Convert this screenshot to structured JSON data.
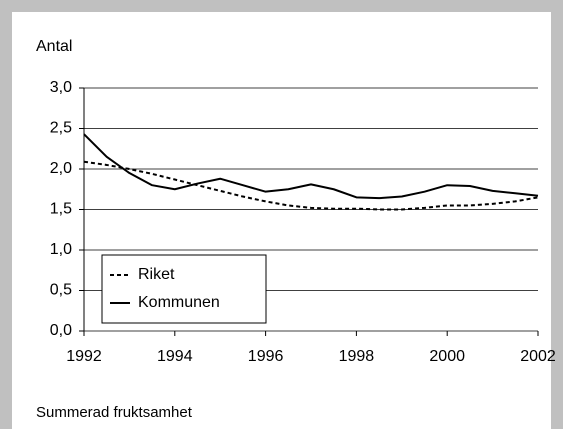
{
  "chart_data": {
    "type": "line",
    "title": "Antal",
    "caption": "Summerad fruktsamhet",
    "x": [
      1992,
      1992.5,
      1993,
      1993.5,
      1994,
      1994.5,
      1995,
      1995.5,
      1996,
      1996.5,
      1997,
      1997.5,
      1998,
      1998.5,
      1999,
      1999.5,
      2000,
      2000.5,
      2001,
      2001.5,
      2002
    ],
    "series": [
      {
        "name": "Riket",
        "color": "#000000",
        "dash": true,
        "values": [
          2.09,
          2.05,
          2.0,
          1.94,
          1.87,
          1.8,
          1.73,
          1.66,
          1.6,
          1.55,
          1.52,
          1.51,
          1.51,
          1.5,
          1.5,
          1.52,
          1.55,
          1.55,
          1.57,
          1.6,
          1.65
        ]
      },
      {
        "name": "Kommunen",
        "color": "#000000",
        "dash": false,
        "values": [
          2.43,
          2.15,
          1.95,
          1.8,
          1.75,
          1.82,
          1.88,
          1.8,
          1.72,
          1.75,
          1.81,
          1.75,
          1.65,
          1.64,
          1.66,
          1.72,
          1.8,
          1.79,
          1.73,
          1.7,
          1.67
        ]
      }
    ],
    "xlim": [
      1992,
      2002
    ],
    "xticks": [
      1992,
      1994,
      1996,
      1998,
      2000,
      2002
    ],
    "ylim": [
      0,
      3
    ],
    "yticks": [
      {
        "value": 0,
        "label": "0,0"
      },
      {
        "value": 0.5,
        "label": "0,5"
      },
      {
        "value": 1,
        "label": "1,0"
      },
      {
        "value": 1.5,
        "label": "1,5"
      },
      {
        "value": 2,
        "label": "2,0"
      },
      {
        "value": 2.5,
        "label": "2,5"
      },
      {
        "value": 3,
        "label": "3,0"
      }
    ],
    "grid": true,
    "legend": "lower left"
  }
}
